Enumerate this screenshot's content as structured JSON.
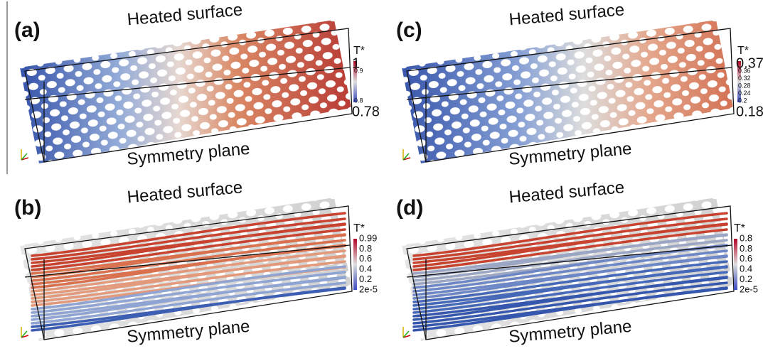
{
  "panels": [
    {
      "label": "(a)",
      "top_text": "Heated surface",
      "bottom_text": "Symmetry plane",
      "legend": {
        "title": "T*",
        "labels": [
          "1",
          "0.9",
          "0.8",
          "0.78"
        ]
      }
    },
    {
      "label": "(c)",
      "top_text": "Heated surface",
      "bottom_text": "Symmetry plane",
      "legend": {
        "title": "T*",
        "labels": [
          "0.37",
          "0.36",
          "0.32",
          "0.28",
          "0.24",
          "0.2",
          "0.18"
        ]
      }
    },
    {
      "label": "(b)",
      "top_text": "Heated surface",
      "bottom_text": "Symmetry plane",
      "legend": {
        "title": "T*",
        "labels": [
          "0.99",
          "0.8",
          "0.6",
          "0.4",
          "0.2",
          "2e-5"
        ]
      }
    },
    {
      "label": "(d)",
      "top_text": "Heated surface",
      "bottom_text": "Symmetry plane",
      "legend": {
        "title": "T*",
        "labels": [
          "0.8",
          "0.8",
          "0.6",
          "0.4",
          "0.2",
          "2e-5"
        ]
      }
    }
  ]
}
